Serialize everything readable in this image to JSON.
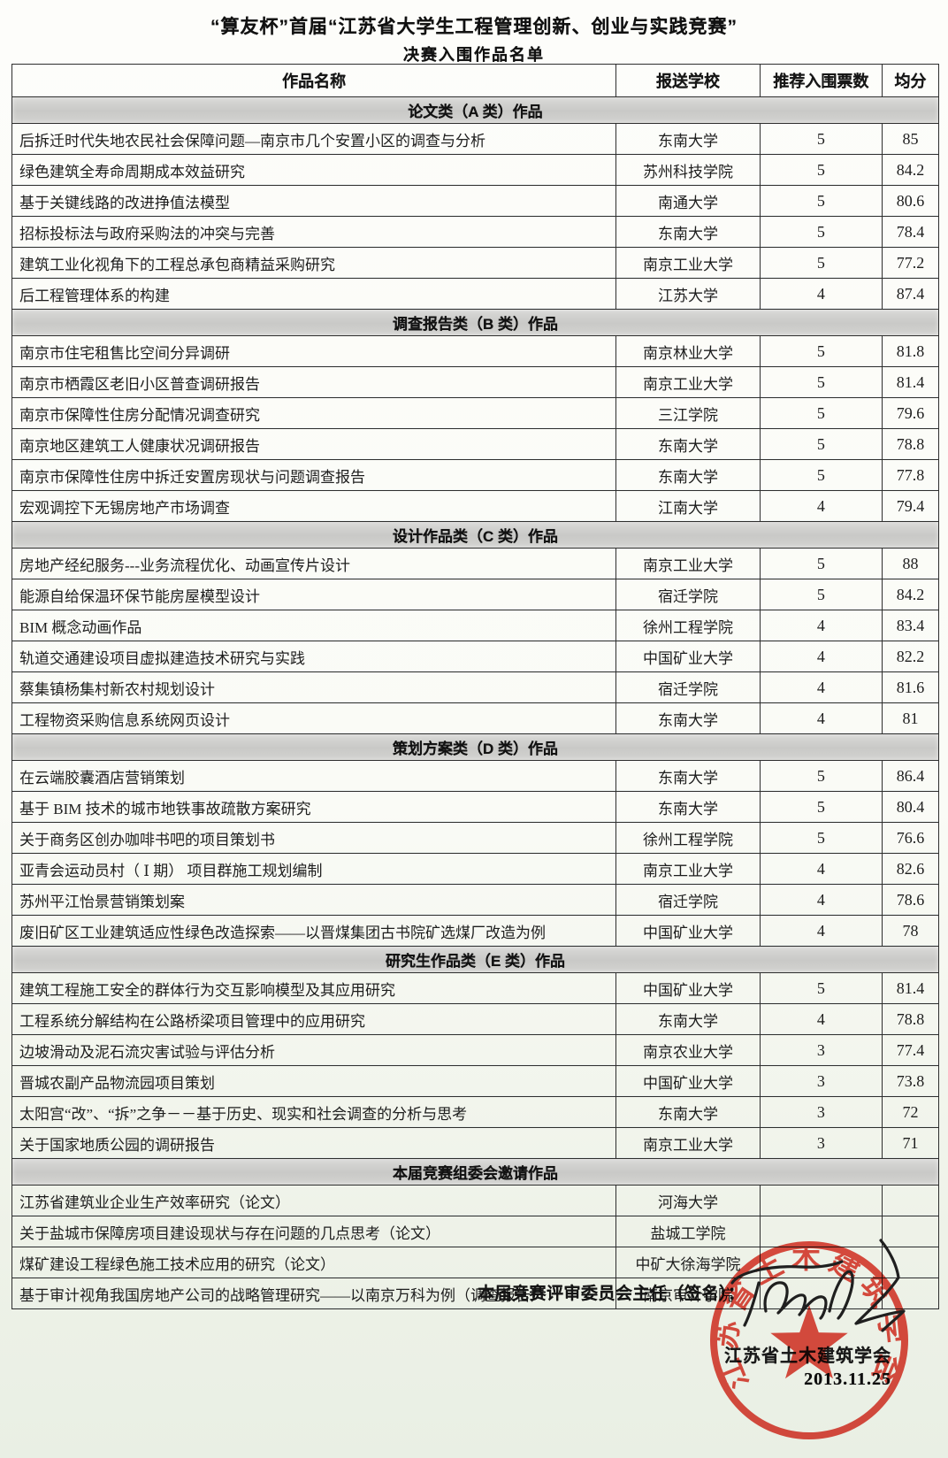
{
  "page": {
    "title": "“算友杯”首届“江苏省大学生工程管理创新、创业与实践竞赛”",
    "subtitle": "决赛入围作品名单"
  },
  "table": {
    "columns": [
      "作品名称",
      "报送学校",
      "推荐入围票数",
      "均分"
    ],
    "sections": [
      {
        "header": "论文类（A 类）作品",
        "rows": [
          {
            "title": "后拆迁时代失地农民社会保障问题—南京市几个安置小区的调查与分析",
            "school": "东南大学",
            "votes": "5",
            "score": "85"
          },
          {
            "title": "绿色建筑全寿命周期成本效益研究",
            "school": "苏州科技学院",
            "votes": "5",
            "score": "84.2"
          },
          {
            "title": "基于关键线路的改进挣值法模型",
            "school": "南通大学",
            "votes": "5",
            "score": "80.6"
          },
          {
            "title": "招标投标法与政府采购法的冲突与完善",
            "school": "东南大学",
            "votes": "5",
            "score": "78.4"
          },
          {
            "title": "建筑工业化视角下的工程总承包商精益采购研究",
            "school": "南京工业大学",
            "votes": "5",
            "score": "77.2"
          },
          {
            "title": "后工程管理体系的构建",
            "school": "江苏大学",
            "votes": "4",
            "score": "87.4"
          }
        ]
      },
      {
        "header": "调查报告类（B 类）作品",
        "rows": [
          {
            "title": "南京市住宅租售比空间分异调研",
            "school": "南京林业大学",
            "votes": "5",
            "score": "81.8"
          },
          {
            "title": "南京市栖霞区老旧小区普查调研报告",
            "school": "南京工业大学",
            "votes": "5",
            "score": "81.4"
          },
          {
            "title": "南京市保障性住房分配情况调查研究",
            "school": "三江学院",
            "votes": "5",
            "score": "79.6"
          },
          {
            "title": "南京地区建筑工人健康状况调研报告",
            "school": "东南大学",
            "votes": "5",
            "score": "78.8"
          },
          {
            "title": "南京市保障性住房中拆迁安置房现状与问题调查报告",
            "school": "东南大学",
            "votes": "5",
            "score": "77.8"
          },
          {
            "title": "宏观调控下无锡房地产市场调查",
            "school": "江南大学",
            "votes": "4",
            "score": "79.4"
          }
        ]
      },
      {
        "header": "设计作品类（C 类）作品",
        "rows": [
          {
            "title": "房地产经纪服务---业务流程优化、动画宣传片设计",
            "school": "南京工业大学",
            "votes": "5",
            "score": "88"
          },
          {
            "title": "能源自给保温环保节能房屋模型设计",
            "school": "宿迁学院",
            "votes": "5",
            "score": "84.2"
          },
          {
            "title": "BIM 概念动画作品",
            "school": "徐州工程学院",
            "votes": "4",
            "score": "83.4"
          },
          {
            "title": "轨道交通建设项目虚拟建造技术研究与实践",
            "school": "中国矿业大学",
            "votes": "4",
            "score": "82.2"
          },
          {
            "title": "蔡集镇杨集村新农村规划设计",
            "school": "宿迁学院",
            "votes": "4",
            "score": "81.6"
          },
          {
            "title": "工程物资采购信息系统网页设计",
            "school": "东南大学",
            "votes": "4",
            "score": "81"
          }
        ]
      },
      {
        "header": "策划方案类（D 类）作品",
        "rows": [
          {
            "title": "在云端胶囊酒店营销策划",
            "school": "东南大学",
            "votes": "5",
            "score": "86.4"
          },
          {
            "title": "基于 BIM 技术的城市地铁事故疏散方案研究",
            "school": "东南大学",
            "votes": "5",
            "score": "80.4"
          },
          {
            "title": "关于商务区创办咖啡书吧的项目策划书",
            "school": "徐州工程学院",
            "votes": "5",
            "score": "76.6"
          },
          {
            "title": "亚青会运动员村（ Ⅰ 期） 项目群施工规划编制",
            "school": "南京工业大学",
            "votes": "4",
            "score": "82.6"
          },
          {
            "title": "苏州平江怡景营销策划案",
            "school": "宿迁学院",
            "votes": "4",
            "score": "78.6"
          },
          {
            "title": "废旧矿区工业建筑适应性绿色改造探索——以晋煤集团古书院矿选煤厂改造为例",
            "school": "中国矿业大学",
            "votes": "4",
            "score": "78"
          }
        ]
      },
      {
        "header": "研究生作品类（E 类）作品",
        "rows": [
          {
            "title": "建筑工程施工安全的群体行为交互影响模型及其应用研究",
            "school": "中国矿业大学",
            "votes": "5",
            "score": "81.4"
          },
          {
            "title": "工程系统分解结构在公路桥梁项目管理中的应用研究",
            "school": "东南大学",
            "votes": "4",
            "score": "78.8"
          },
          {
            "title": "边坡滑动及泥石流灾害试验与评估分析",
            "school": "南京农业大学",
            "votes": "3",
            "score": "77.4"
          },
          {
            "title": "晋城农副产品物流园项目策划",
            "school": "中国矿业大学",
            "votes": "3",
            "score": "73.8"
          },
          {
            "title": "太阳宫“改”、“拆”之争－－基于历史、现实和社会调查的分析与思考",
            "school": "东南大学",
            "votes": "3",
            "score": "72"
          },
          {
            "title": "关于国家地质公园的调研报告",
            "school": "南京工业大学",
            "votes": "3",
            "score": "71"
          }
        ]
      },
      {
        "header": "本届竞赛组委会邀请作品",
        "rows": [
          {
            "title": "江苏省建筑业企业生产效率研究（论文）",
            "school": "河海大学",
            "votes": "",
            "score": ""
          },
          {
            "title": "关于盐城市保障房项目建设现状与存在问题的几点思考（论文）",
            "school": "盐城工学院",
            "votes": "",
            "score": ""
          },
          {
            "title": "煤矿建设工程绿色施工技术应用的研究（论文）",
            "school": "中矿大徐海学院",
            "votes": "",
            "score": ""
          },
          {
            "title": "基于审计视角我国房地产公司的战略管理研究——以南京万科为例（调查报告）",
            "school": "南京审计学院",
            "votes": "",
            "score": ""
          }
        ]
      }
    ]
  },
  "footer": {
    "sign_label": "本届竞赛评审委员会主任（签名）：",
    "org": "江苏省土木建筑学会",
    "date": "2013.11.25"
  },
  "stamp": {
    "text": "江苏省土木建筑学会",
    "icon": "red-star-icon",
    "color": "#e03428"
  },
  "colors": {
    "stamp_red": "#e03428",
    "section_band": "#cecdca",
    "table_border": "#2e2e2e",
    "ink": "#1c1c1c"
  }
}
